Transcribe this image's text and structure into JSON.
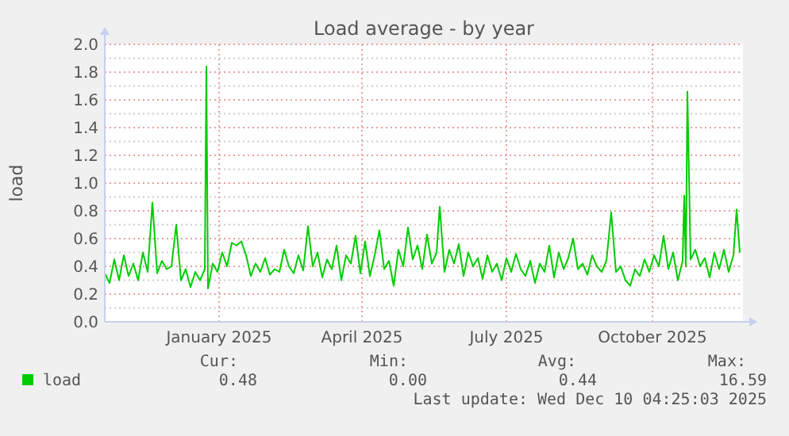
{
  "chart_data": {
    "type": "line",
    "title": "Load average - by year",
    "ylabel": "load",
    "xlim": [
      "2024-10-21",
      "2025-11-27"
    ],
    "xticks": [
      {
        "value": "2025-01-01",
        "label": "January 2025"
      },
      {
        "value": "2025-04-01",
        "label": "April 2025"
      },
      {
        "value": "2025-07-01",
        "label": "July 2025"
      },
      {
        "value": "2025-10-01",
        "label": "October 2025"
      }
    ],
    "ylim": [
      0,
      2
    ],
    "yticks": [
      {
        "value": 0,
        "label": "0.0"
      },
      0.2,
      0.4,
      0.6,
      0.8,
      {
        "value": 1,
        "label": "1.0"
      },
      1.2,
      1.4,
      1.6,
      1.8,
      {
        "value": 2,
        "label": "2.0"
      }
    ],
    "grid": true,
    "legend": "bottom",
    "x": [
      "2024-10-21",
      "2024-10-24",
      "2024-10-27",
      "2024-10-30",
      "2024-11-02",
      "2024-11-05",
      "2024-11-08",
      "2024-11-11",
      "2024-11-14",
      "2024-11-17",
      "2024-11-20",
      "2024-11-23",
      "2024-11-26",
      "2024-11-29",
      "2024-12-02",
      "2024-12-05",
      "2024-12-08",
      "2024-12-11",
      "2024-12-14",
      "2024-12-17",
      "2024-12-20",
      "2024-12-23",
      "2024-12-24",
      "2024-12-25",
      "2024-12-28",
      "2024-12-31",
      "2025-01-03",
      "2025-01-06",
      "2025-01-09",
      "2025-01-12",
      "2025-01-15",
      "2025-01-18",
      "2025-01-21",
      "2025-01-24",
      "2025-01-27",
      "2025-01-30",
      "2025-02-02",
      "2025-02-05",
      "2025-02-08",
      "2025-02-11",
      "2025-02-14",
      "2025-02-17",
      "2025-02-20",
      "2025-02-23",
      "2025-02-26",
      "2025-03-01",
      "2025-03-04",
      "2025-03-07",
      "2025-03-10",
      "2025-03-13",
      "2025-03-16",
      "2025-03-19",
      "2025-03-22",
      "2025-03-25",
      "2025-03-28",
      "2025-03-31",
      "2025-04-03",
      "2025-04-06",
      "2025-04-09",
      "2025-04-12",
      "2025-04-15",
      "2025-04-18",
      "2025-04-21",
      "2025-04-24",
      "2025-04-27",
      "2025-04-30",
      "2025-05-03",
      "2025-05-06",
      "2025-05-09",
      "2025-05-12",
      "2025-05-15",
      "2025-05-18",
      "2025-05-20",
      "2025-05-23",
      "2025-05-26",
      "2025-05-29",
      "2025-06-01",
      "2025-06-04",
      "2025-06-07",
      "2025-06-10",
      "2025-06-13",
      "2025-06-16",
      "2025-06-19",
      "2025-06-22",
      "2025-06-25",
      "2025-06-28",
      "2025-07-01",
      "2025-07-04",
      "2025-07-07",
      "2025-07-10",
      "2025-07-13",
      "2025-07-16",
      "2025-07-19",
      "2025-07-22",
      "2025-07-25",
      "2025-07-28",
      "2025-07-31",
      "2025-08-03",
      "2025-08-06",
      "2025-08-09",
      "2025-08-12",
      "2025-08-15",
      "2025-08-18",
      "2025-08-21",
      "2025-08-24",
      "2025-08-27",
      "2025-08-30",
      "2025-09-02",
      "2025-09-05",
      "2025-09-08",
      "2025-09-11",
      "2025-09-14",
      "2025-09-17",
      "2025-09-20",
      "2025-09-23",
      "2025-09-26",
      "2025-09-29",
      "2025-10-02",
      "2025-10-05",
      "2025-10-08",
      "2025-10-11",
      "2025-10-14",
      "2025-10-17",
      "2025-10-20",
      "2025-10-21",
      "2025-10-22",
      "2025-10-23",
      "2025-10-25",
      "2025-10-28",
      "2025-10-31",
      "2025-11-03",
      "2025-11-06",
      "2025-11-09",
      "2025-11-12",
      "2025-11-15",
      "2025-11-18",
      "2025-11-21",
      "2025-11-23",
      "2025-11-25"
    ],
    "series": [
      {
        "name": "load",
        "color": "#00cc00",
        "values": [
          0.35,
          0.28,
          0.45,
          0.3,
          0.48,
          0.33,
          0.42,
          0.3,
          0.5,
          0.36,
          0.86,
          0.35,
          0.44,
          0.38,
          0.4,
          0.7,
          0.3,
          0.38,
          0.25,
          0.36,
          0.3,
          0.38,
          1.84,
          0.24,
          0.42,
          0.36,
          0.5,
          0.4,
          0.57,
          0.55,
          0.58,
          0.48,
          0.33,
          0.42,
          0.36,
          0.46,
          0.34,
          0.38,
          0.36,
          0.52,
          0.4,
          0.35,
          0.48,
          0.37,
          0.69,
          0.4,
          0.5,
          0.32,
          0.45,
          0.38,
          0.55,
          0.3,
          0.48,
          0.42,
          0.62,
          0.35,
          0.58,
          0.33,
          0.48,
          0.66,
          0.38,
          0.44,
          0.26,
          0.52,
          0.4,
          0.68,
          0.45,
          0.55,
          0.38,
          0.63,
          0.42,
          0.5,
          0.83,
          0.36,
          0.52,
          0.42,
          0.56,
          0.33,
          0.5,
          0.4,
          0.46,
          0.31,
          0.48,
          0.36,
          0.42,
          0.3,
          0.46,
          0.36,
          0.49,
          0.38,
          0.33,
          0.44,
          0.28,
          0.42,
          0.36,
          0.55,
          0.32,
          0.5,
          0.38,
          0.46,
          0.6,
          0.38,
          0.42,
          0.34,
          0.48,
          0.4,
          0.36,
          0.44,
          0.79,
          0.36,
          0.4,
          0.3,
          0.26,
          0.38,
          0.33,
          0.45,
          0.36,
          0.48,
          0.4,
          0.62,
          0.38,
          0.5,
          0.3,
          0.44,
          0.91,
          0.4,
          1.66,
          0.45,
          0.52,
          0.4,
          0.46,
          0.32,
          0.5,
          0.38,
          0.52,
          0.36,
          0.48,
          0.81,
          0.5
        ]
      }
    ],
    "annotations": [
      "Cur:",
      "Min:",
      "Avg:",
      "Max:",
      "0.48",
      "0.00",
      "0.44",
      "16.59",
      "Last update: Wed Dec 10 04:25:03 2025"
    ]
  }
}
